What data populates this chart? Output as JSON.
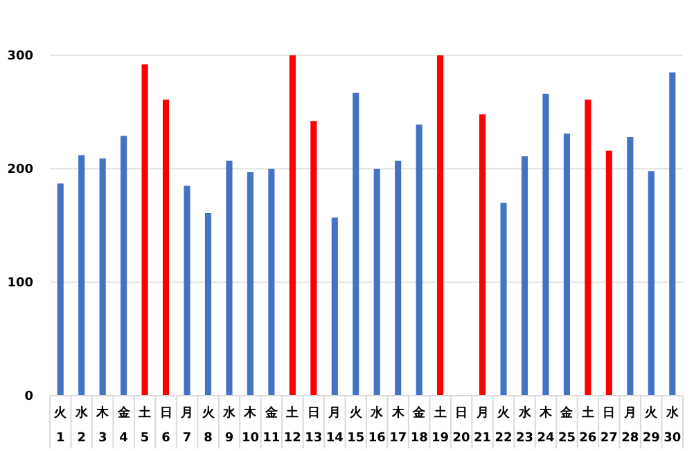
{
  "chart_data": {
    "type": "bar",
    "categories": [
      "火\n1",
      "水\n2",
      "木\n3",
      "金\n4",
      "土\n5",
      "日\n6",
      "月\n7",
      "火\n8",
      "水\n9",
      "木\n10",
      "金\n11",
      "土\n12",
      "日\n13",
      "月\n14",
      "火\n15",
      "水\n16",
      "木\n17",
      "金\n18",
      "土\n19",
      "日\n20",
      "月\n21",
      "火\n22",
      "水\n23",
      "木\n24",
      "金\n25",
      "土\n26",
      "日\n27",
      "月\n28",
      "火\n29",
      "水\n30"
    ],
    "values": [
      187,
      212,
      209,
      229,
      292,
      261,
      185,
      161,
      207,
      197,
      200,
      300,
      242,
      157,
      267,
      200,
      207,
      239,
      300,
      null,
      248,
      170,
      211,
      266,
      231,
      261,
      216,
      228,
      198,
      285
    ],
    "colors": [
      "#4472c4",
      "#4472c4",
      "#4472c4",
      "#4472c4",
      "#ff0000",
      "#ff0000",
      "#4472c4",
      "#4472c4",
      "#4472c4",
      "#4472c4",
      "#4472c4",
      "#ff0000",
      "#ff0000",
      "#4472c4",
      "#4472c4",
      "#4472c4",
      "#4472c4",
      "#4472c4",
      "#ff0000",
      null,
      "#ff0000",
      "#4472c4",
      "#4472c4",
      "#4472c4",
      "#4472c4",
      "#ff0000",
      "#ff0000",
      "#4472c4",
      "#4472c4",
      "#4472c4"
    ],
    "ylim": [
      0,
      300
    ],
    "yticks": [
      0,
      100,
      200,
      300
    ],
    "grid": "y"
  }
}
